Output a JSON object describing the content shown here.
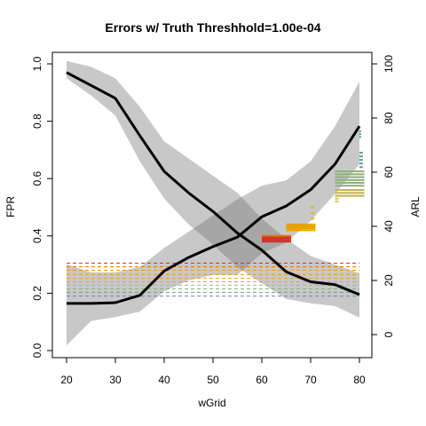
{
  "chart_data": {
    "type": "line",
    "title": "Errors w/ Truth Threshhold=1.00e-04",
    "xlabel": "wGrid",
    "ylabel_left": "FPR",
    "ylabel_right": "ARL",
    "x_ticks": [
      "20",
      "30",
      "40",
      "50",
      "60",
      "70",
      "80"
    ],
    "y_left_ticks": [
      "0.0",
      "0.2",
      "0.4",
      "0.6",
      "0.8",
      "1.0"
    ],
    "y_right_ticks": [
      "0",
      "20",
      "40",
      "60",
      "80",
      "100"
    ],
    "xlim": [
      20,
      80
    ],
    "ylim_left": [
      0,
      1
    ],
    "ylim_right": [
      0,
      100
    ],
    "x": [
      20,
      25,
      30,
      35,
      40,
      45,
      50,
      55,
      60,
      65,
      70,
      75,
      80
    ],
    "fpr_mean": [
      0.97,
      0.925,
      0.88,
      0.75,
      0.625,
      0.55,
      0.485,
      0.41,
      0.35,
      0.275,
      0.24,
      0.23,
      0.195
    ],
    "fpr_band_upper": [
      1.01,
      0.99,
      0.95,
      0.85,
      0.73,
      0.67,
      0.61,
      0.55,
      0.46,
      0.39,
      0.33,
      0.3,
      0.27
    ],
    "fpr_band_lower": [
      0.95,
      0.89,
      0.82,
      0.66,
      0.53,
      0.44,
      0.37,
      0.29,
      0.235,
      0.18,
      0.165,
      0.155,
      0.115
    ],
    "arl_mean": [
      11.5,
      11.5,
      11.8,
      14.5,
      23.5,
      28.5,
      32.5,
      36.0,
      43.5,
      47.5,
      53.5,
      63.0,
      77.0
    ],
    "arl_band_upper": [
      26.0,
      23.0,
      23.0,
      25.0,
      32.0,
      38.0,
      44.0,
      50.0,
      55.0,
      57.0,
      64.0,
      77.0,
      93.5
    ],
    "arl_band_lower": [
      -4.0,
      5.0,
      6.5,
      8.5,
      16.0,
      20.0,
      22.0,
      22.0,
      30.0,
      34.0,
      42.0,
      52.0,
      63.0
    ],
    "threshold_lines": [
      {
        "y": 0.305,
        "color": "#d32f2f"
      },
      {
        "y": 0.292,
        "color": "#e57200"
      },
      {
        "y": 0.28,
        "color": "#e69f00"
      },
      {
        "y": 0.265,
        "color": "#e69f00"
      },
      {
        "y": 0.252,
        "color": "#d4a72c"
      },
      {
        "y": 0.24,
        "color": "#c2b04a"
      },
      {
        "y": 0.228,
        "color": "#a9b76b"
      },
      {
        "y": 0.215,
        "color": "#8fae7a"
      },
      {
        "y": 0.203,
        "color": "#6f9f8a"
      },
      {
        "y": 0.19,
        "color": "#5a9696"
      }
    ],
    "marker_clusters": [
      {
        "x0": 60,
        "x1": 66,
        "y_min": 0.38,
        "y_max": 0.398,
        "count": 4,
        "color": "#d32f2f"
      },
      {
        "x0": 60,
        "x1": 66,
        "y_min": 0.4,
        "y_max": 0.4,
        "count": 1,
        "color": "#e57200"
      },
      {
        "x0": 65,
        "x1": 71,
        "y_min": 0.42,
        "y_max": 0.44,
        "count": 4,
        "color": "#e69f00"
      },
      {
        "x0": 70,
        "x1": 70.7,
        "y_min": 0.42,
        "y_max": 0.5,
        "count": 5,
        "color": "#e6b800"
      },
      {
        "x0": 75,
        "x1": 75.7,
        "y_min": 0.52,
        "y_max": 0.53,
        "count": 2,
        "color": "#d4c24a"
      },
      {
        "x0": 75,
        "x1": 81,
        "y_min": 0.54,
        "y_max": 0.56,
        "count": 3,
        "color": "#c2b04a"
      },
      {
        "x0": 75,
        "x1": 81,
        "y_min": 0.575,
        "y_max": 0.625,
        "count": 6,
        "color": "#8fae7a"
      },
      {
        "x0": 80,
        "x1": 80.7,
        "y_min": 0.64,
        "y_max": 0.69,
        "count": 5,
        "color": "#5a9696"
      },
      {
        "x0": 80,
        "x1": 80.3,
        "y_min": 0.745,
        "y_max": 0.765,
        "count": 3,
        "color": "#2b8c8c"
      }
    ]
  }
}
